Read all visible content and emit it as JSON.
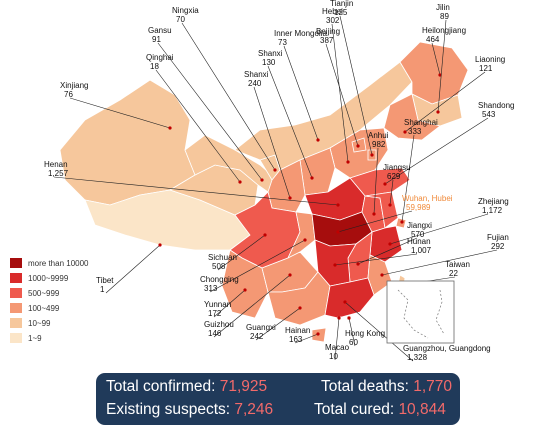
{
  "legend": [
    {
      "label": "more than 10000",
      "color": "#a60d0d"
    },
    {
      "label": "1000~9999",
      "color": "#d92b2b"
    },
    {
      "label": "500~999",
      "color": "#ef5a4e"
    },
    {
      "label": "100~499",
      "color": "#f49874"
    },
    {
      "label": "10~99",
      "color": "#f6c79c"
    },
    {
      "label": "1~9",
      "color": "#fbe5c8"
    }
  ],
  "stats": {
    "confirmed_label": "Total confirmed: ",
    "confirmed_value": "71,925",
    "deaths_label": "Total deaths: ",
    "deaths_value": "1,770",
    "suspects_label": "Existing suspects: ",
    "suspects_value": "7,246",
    "cured_label": "Total cured: ",
    "cured_value": "10,844"
  },
  "provinces": [
    {
      "id": "xinjiang",
      "name": "Xinjiang",
      "count": "76",
      "fill": "#f6c79c"
    },
    {
      "id": "tibet",
      "name": "Tibet",
      "count": "1",
      "fill": "#fbe5c8"
    },
    {
      "id": "qinghai",
      "name": "Qinghai",
      "count": "18",
      "fill": "#f6c79c"
    },
    {
      "id": "gansu",
      "name": "Gansu",
      "count": "91",
      "fill": "#f6c79c"
    },
    {
      "id": "ningxia",
      "name": "Ningxia",
      "count": "70",
      "fill": "#f6c79c"
    },
    {
      "id": "inner-mongolia",
      "name": "Inner Mongolia",
      "count": "73",
      "fill": "#f6c79c"
    },
    {
      "id": "heilongjiang",
      "name": "Heilongjiang",
      "count": "464",
      "fill": "#f49874"
    },
    {
      "id": "jilin",
      "name": "Jilin",
      "count": "89",
      "fill": "#f6c79c"
    },
    {
      "id": "liaoning",
      "name": "Liaoning",
      "count": "121",
      "fill": "#f49874"
    },
    {
      "id": "hebei",
      "name": "Hebei",
      "count": "302",
      "fill": "#f49874"
    },
    {
      "id": "beijing",
      "name": "Beijing",
      "count": "387",
      "fill": "#f49874"
    },
    {
      "id": "tianjin",
      "name": "Tianjin",
      "count": "125",
      "fill": "#f49874"
    },
    {
      "id": "shanxi-n",
      "name": "Shanxi",
      "count": "130",
      "fill": "#f49874"
    },
    {
      "id": "shanxi-s",
      "name": "Shanxi",
      "count": "240",
      "fill": "#f49874"
    },
    {
      "id": "shandong",
      "name": "Shandong",
      "count": "543",
      "fill": "#ef5a4e"
    },
    {
      "id": "henan",
      "name": "Henan",
      "count": "1,257",
      "fill": "#d92b2b"
    },
    {
      "id": "sichuan",
      "name": "Sichuan",
      "count": "508",
      "fill": "#ef5a4e"
    },
    {
      "id": "chongqing",
      "name": "Chongqing",
      "count": "313",
      "fill": "#f49874"
    },
    {
      "id": "hubei",
      "name": "Wuhan, Hubei",
      "count": "59,989",
      "fill": "#a60d0d"
    },
    {
      "id": "anhui",
      "name": "Anhui",
      "count": "982",
      "fill": "#ef5a4e"
    },
    {
      "id": "jiangsu",
      "name": "Jiangsu",
      "count": "629",
      "fill": "#ef5a4e"
    },
    {
      "id": "shanghai",
      "name": "Shanghai",
      "count": "333",
      "fill": "#f49874"
    },
    {
      "id": "zhejiang",
      "name": "Zhejiang",
      "count": "1,172",
      "fill": "#d92b2b"
    },
    {
      "id": "jiangxi",
      "name": "Jiangxi",
      "count": "570",
      "fill": "#ef5a4e"
    },
    {
      "id": "hunan",
      "name": "Hunan",
      "count": "1,007",
      "fill": "#d92b2b"
    },
    {
      "id": "fujian",
      "name": "Fujian",
      "count": "292",
      "fill": "#f49874"
    },
    {
      "id": "taiwan",
      "name": "Taiwan",
      "count": "22",
      "fill": "#f6c79c"
    },
    {
      "id": "yunnan",
      "name": "Yunnan",
      "count": "172",
      "fill": "#f49874"
    },
    {
      "id": "guizhou",
      "name": "Guizhou",
      "count": "146",
      "fill": "#f49874"
    },
    {
      "id": "guangxi",
      "name": "Guangxi",
      "count": "242",
      "fill": "#f49874"
    },
    {
      "id": "guangdong",
      "name": "Guangzhou, Guangdong",
      "count": "1,328",
      "fill": "#d92b2b"
    },
    {
      "id": "hainan",
      "name": "Hainan",
      "count": "163",
      "fill": "#f49874"
    },
    {
      "id": "hong-kong",
      "name": "Hong Kong",
      "count": "60",
      "fill": "#f6c79c"
    },
    {
      "id": "macao",
      "name": "Macao",
      "count": "10",
      "fill": "#f6c79c"
    }
  ]
}
